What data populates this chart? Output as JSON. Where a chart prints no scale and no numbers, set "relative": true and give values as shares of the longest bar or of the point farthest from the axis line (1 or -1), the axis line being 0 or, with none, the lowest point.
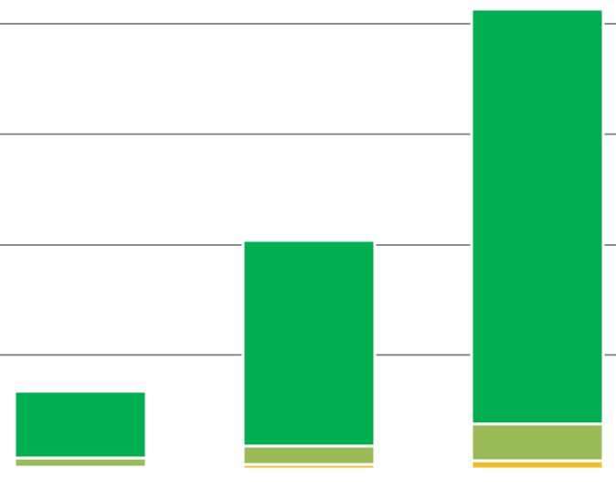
{
  "chart_data": {
    "type": "bar",
    "stacked": true,
    "relative": true,
    "grid": true,
    "categories": [
      null,
      null,
      null
    ],
    "series": [
      {
        "color": "#f2bd26",
        "values": [
          0.004,
          0.01,
          0.018
        ]
      },
      {
        "color": "#9bbb59",
        "values": [
          0.02,
          0.04,
          0.08
        ]
      },
      {
        "color": "#00b050",
        "values": [
          0.145,
          0.447,
          0.902
        ]
      }
    ]
  }
}
